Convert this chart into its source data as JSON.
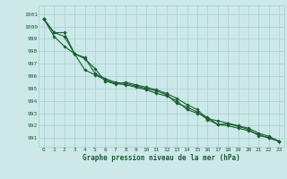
{
  "title": "Graphe pression niveau de la mer (hPa)",
  "bg_color": "#cce8e8",
  "grid_color": "#aacfcf",
  "line_color": "#1a5c32",
  "xlim": [
    -0.5,
    23.5
  ],
  "ylim": [
    990.3,
    1001.7
  ],
  "yticks": [
    991,
    992,
    993,
    994,
    995,
    996,
    997,
    998,
    999,
    1000,
    1001
  ],
  "xticks": [
    0,
    1,
    2,
    3,
    4,
    5,
    6,
    7,
    8,
    9,
    10,
    11,
    12,
    13,
    14,
    15,
    16,
    17,
    18,
    19,
    20,
    21,
    22,
    23
  ],
  "line1": [
    1000.6,
    999.5,
    999.2,
    997.8,
    997.5,
    996.2,
    995.8,
    995.5,
    995.4,
    995.2,
    995.0,
    994.8,
    994.5,
    993.8,
    993.5,
    993.1,
    992.5,
    992.1,
    992.0,
    991.8,
    991.6,
    991.3,
    991.0,
    990.75
  ],
  "line2": [
    1000.6,
    999.5,
    999.5,
    997.8,
    996.5,
    996.1,
    995.7,
    995.4,
    995.3,
    995.1,
    994.9,
    994.6,
    994.4,
    994.0,
    993.3,
    993.0,
    992.7,
    992.1,
    992.15,
    991.95,
    991.7,
    991.2,
    991.05,
    990.75
  ],
  "line3": [
    1000.6,
    999.2,
    998.4,
    997.8,
    997.4,
    996.6,
    995.6,
    995.35,
    995.5,
    995.3,
    995.1,
    994.9,
    994.6,
    994.2,
    993.7,
    993.3,
    992.55,
    992.4,
    992.2,
    992.0,
    991.8,
    991.4,
    991.15,
    990.75
  ]
}
